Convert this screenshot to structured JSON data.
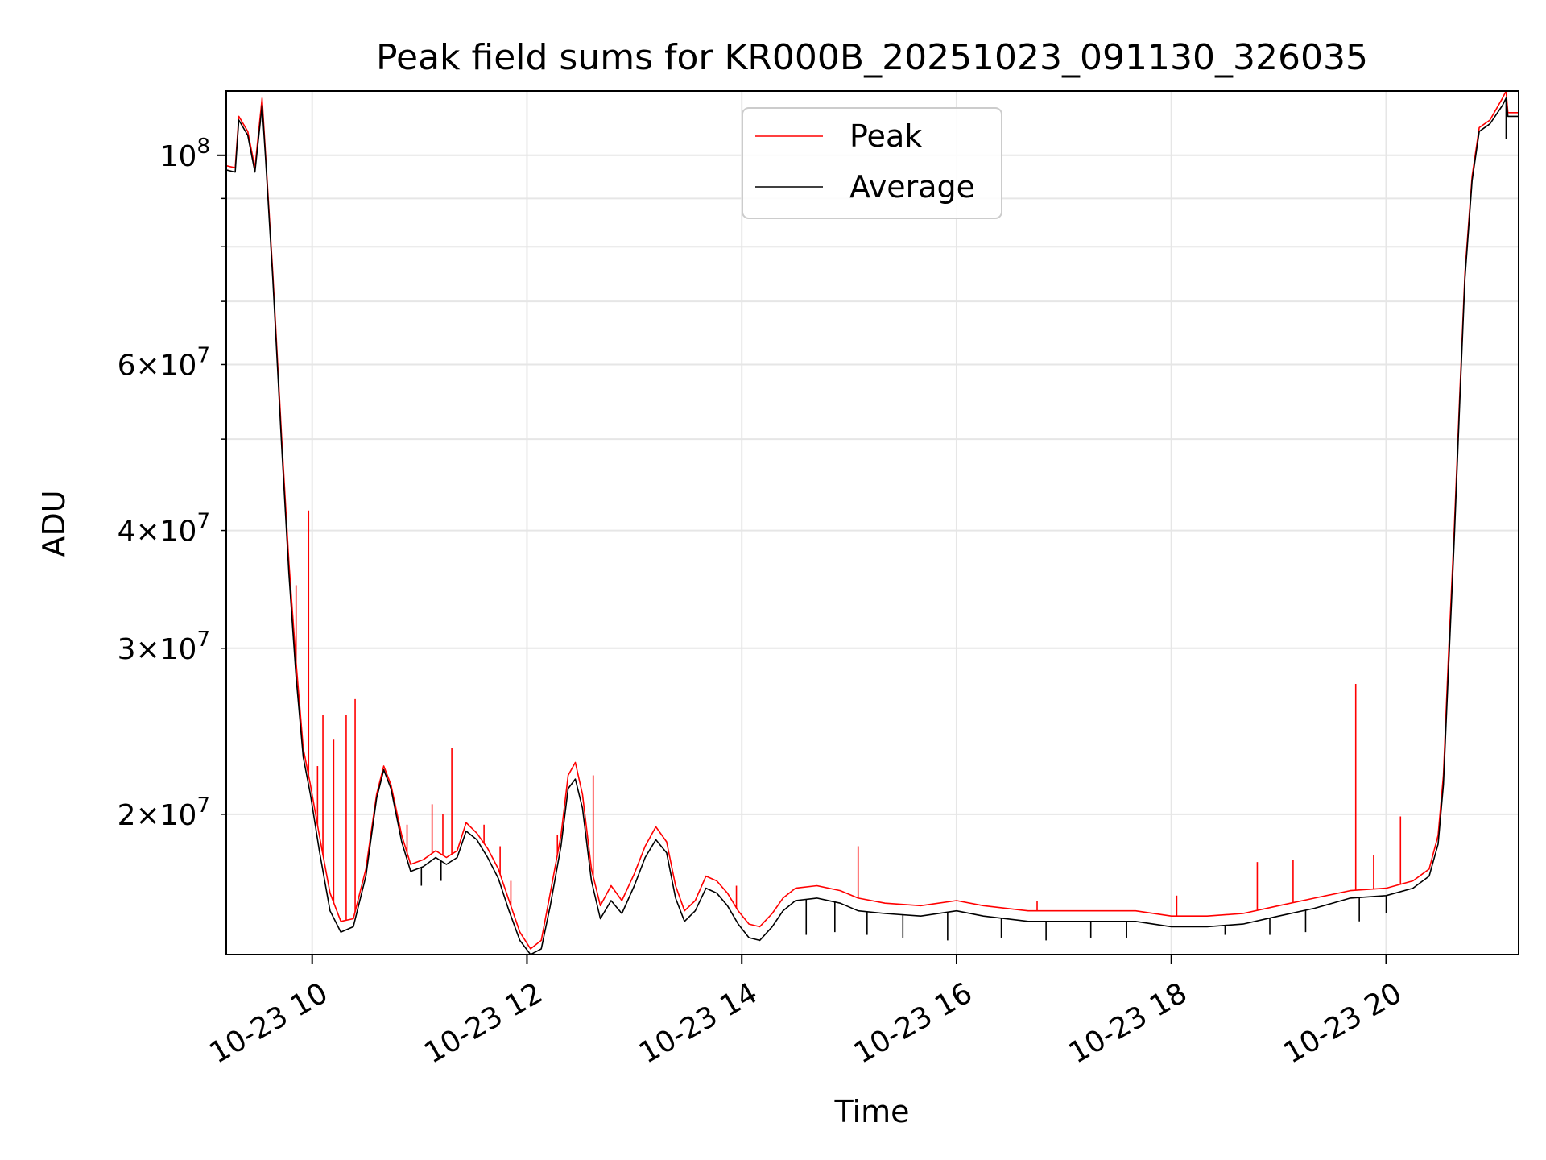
{
  "chart_data": {
    "type": "line",
    "title": "Peak field sums for KR000B_20251023_091130_326035",
    "xlabel": "Time",
    "ylabel": "ADU",
    "yscale": "log",
    "xlim": [
      "2025-10-23 09:12",
      "2025-10-23 21:14"
    ],
    "ylim": [
      14200000,
      117000000
    ],
    "grid": true,
    "legend_position": "top-center",
    "x_ticks": [
      {
        "value": "2025-10-23 10:00",
        "label": "10-23 10"
      },
      {
        "value": "2025-10-23 12:00",
        "label": "10-23 12"
      },
      {
        "value": "2025-10-23 14:00",
        "label": "10-23 14"
      },
      {
        "value": "2025-10-23 16:00",
        "label": "10-23 16"
      },
      {
        "value": "2025-10-23 18:00",
        "label": "10-23 18"
      },
      {
        "value": "2025-10-23 20:00",
        "label": "10-23 20"
      }
    ],
    "y_major_ticks": [
      {
        "value": 100000000,
        "base": "10",
        "exp": "8"
      }
    ],
    "y_minor_ticks": [
      {
        "value": 20000000,
        "mant": "2",
        "base": "10",
        "exp": "7"
      },
      {
        "value": 30000000,
        "mant": "3",
        "base": "10",
        "exp": "7"
      },
      {
        "value": 40000000,
        "mant": "4",
        "base": "10",
        "exp": "7"
      },
      {
        "value": 50000000
      },
      {
        "value": 60000000,
        "mant": "6",
        "base": "10",
        "exp": "7"
      },
      {
        "value": 70000000
      },
      {
        "value": 80000000
      },
      {
        "value": 90000000
      }
    ],
    "times_sign": "×",
    "series": [
      {
        "name": "Peak",
        "color": "#ff0000",
        "points": [
          [
            "2025-10-23 09:12",
            97500000
          ],
          [
            "2025-10-23 09:17",
            97000000
          ],
          [
            "2025-10-23 09:19",
            110000000
          ],
          [
            "2025-10-23 09:24",
            106000000
          ],
          [
            "2025-10-23 09:28",
            97000000
          ],
          [
            "2025-10-23 09:32",
            115000000
          ],
          [
            "2025-10-23 09:34",
            100000000
          ],
          [
            "2025-10-23 09:38",
            75000000
          ],
          [
            "2025-10-23 09:43",
            50000000
          ],
          [
            "2025-10-23 09:47",
            37000000
          ],
          [
            "2025-10-23 09:51",
            29000000
          ],
          [
            "2025-10-23 09:55",
            23500000
          ],
          [
            "2025-10-23 09:59",
            21500000
          ],
          [
            "2025-10-23 10:04",
            19000000
          ],
          [
            "2025-10-23 10:10",
            16500000
          ],
          [
            "2025-10-23 10:16",
            15400000
          ],
          [
            "2025-10-23 10:23",
            15500000
          ],
          [
            "2025-10-23 10:30",
            17500000
          ],
          [
            "2025-10-23 10:36",
            21000000
          ],
          [
            "2025-10-23 10:40",
            22500000
          ],
          [
            "2025-10-23 10:44",
            21500000
          ],
          [
            "2025-10-23 10:50",
            19000000
          ],
          [
            "2025-10-23 10:55",
            17700000
          ],
          [
            "2025-10-23 11:02",
            17900000
          ],
          [
            "2025-10-23 11:09",
            18300000
          ],
          [
            "2025-10-23 11:15",
            18000000
          ],
          [
            "2025-10-23 11:21",
            18300000
          ],
          [
            "2025-10-23 11:26",
            19600000
          ],
          [
            "2025-10-23 11:32",
            19100000
          ],
          [
            "2025-10-23 11:38",
            18400000
          ],
          [
            "2025-10-23 11:44",
            17500000
          ],
          [
            "2025-10-23 11:50",
            16200000
          ],
          [
            "2025-10-23 11:56",
            15000000
          ],
          [
            "2025-10-23 12:02",
            14400000
          ],
          [
            "2025-10-23 12:08",
            14700000
          ],
          [
            "2025-10-23 12:13",
            16500000
          ],
          [
            "2025-10-23 12:19",
            19000000
          ],
          [
            "2025-10-23 12:23",
            22000000
          ],
          [
            "2025-10-23 12:27",
            22700000
          ],
          [
            "2025-10-23 12:31",
            21000000
          ],
          [
            "2025-10-23 12:36",
            17500000
          ],
          [
            "2025-10-23 12:41",
            16000000
          ],
          [
            "2025-10-23 12:47",
            16800000
          ],
          [
            "2025-10-23 12:53",
            16200000
          ],
          [
            "2025-10-23 13:00",
            17300000
          ],
          [
            "2025-10-23 13:06",
            18500000
          ],
          [
            "2025-10-23 13:12",
            19400000
          ],
          [
            "2025-10-23 13:18",
            18700000
          ],
          [
            "2025-10-23 13:23",
            16800000
          ],
          [
            "2025-10-23 13:28",
            15800000
          ],
          [
            "2025-10-23 13:34",
            16200000
          ],
          [
            "2025-10-23 13:40",
            17200000
          ],
          [
            "2025-10-23 13:46",
            17000000
          ],
          [
            "2025-10-23 13:52",
            16500000
          ],
          [
            "2025-10-23 13:58",
            15800000
          ],
          [
            "2025-10-23 14:04",
            15300000
          ],
          [
            "2025-10-23 14:10",
            15200000
          ],
          [
            "2025-10-23 14:17",
            15700000
          ],
          [
            "2025-10-23 14:23",
            16300000
          ],
          [
            "2025-10-23 14:30",
            16700000
          ],
          [
            "2025-10-23 14:42",
            16800000
          ],
          [
            "2025-10-23 14:55",
            16600000
          ],
          [
            "2025-10-23 15:05",
            16300000
          ],
          [
            "2025-10-23 15:20",
            16100000
          ],
          [
            "2025-10-23 15:40",
            16000000
          ],
          [
            "2025-10-23 16:00",
            16200000
          ],
          [
            "2025-10-23 16:15",
            16000000
          ],
          [
            "2025-10-23 16:40",
            15800000
          ],
          [
            "2025-10-23 17:00",
            15800000
          ],
          [
            "2025-10-23 17:20",
            15800000
          ],
          [
            "2025-10-23 17:40",
            15800000
          ],
          [
            "2025-10-23 18:00",
            15600000
          ],
          [
            "2025-10-23 18:20",
            15600000
          ],
          [
            "2025-10-23 18:40",
            15700000
          ],
          [
            "2025-10-23 19:00",
            16000000
          ],
          [
            "2025-10-23 19:20",
            16300000
          ],
          [
            "2025-10-23 19:40",
            16600000
          ],
          [
            "2025-10-23 20:00",
            16700000
          ],
          [
            "2025-10-23 20:15",
            17000000
          ],
          [
            "2025-10-23 20:24",
            17500000
          ],
          [
            "2025-10-23 20:29",
            19000000
          ],
          [
            "2025-10-23 20:32",
            22000000
          ],
          [
            "2025-10-23 20:35",
            30000000
          ],
          [
            "2025-10-23 20:38",
            40000000
          ],
          [
            "2025-10-23 20:41",
            55000000
          ],
          [
            "2025-10-23 20:44",
            75000000
          ],
          [
            "2025-10-23 20:48",
            95000000
          ],
          [
            "2025-10-23 20:52",
            107000000
          ],
          [
            "2025-10-23 20:58",
            109000000
          ],
          [
            "2025-10-23 21:05",
            115000000
          ],
          [
            "2025-10-23 21:07",
            117000000
          ],
          [
            "2025-10-23 21:08",
            111000000
          ],
          [
            "2025-10-23 21:14",
            111000000
          ]
        ],
        "spikes": [
          [
            "2025-10-23 09:51",
            35000000
          ],
          [
            "2025-10-23 09:58",
            42000000
          ],
          [
            "2025-10-23 10:03",
            22500000
          ],
          [
            "2025-10-23 10:06",
            25500000
          ],
          [
            "2025-10-23 10:12",
            24000000
          ],
          [
            "2025-10-23 10:19",
            25500000
          ],
          [
            "2025-10-23 10:24",
            26500000
          ],
          [
            "2025-10-23 10:53",
            19500000
          ],
          [
            "2025-10-23 11:07",
            20500000
          ],
          [
            "2025-10-23 11:13",
            20000000
          ],
          [
            "2025-10-23 11:18",
            23500000
          ],
          [
            "2025-10-23 11:36",
            19500000
          ],
          [
            "2025-10-23 11:45",
            18500000
          ],
          [
            "2025-10-23 11:51",
            17000000
          ],
          [
            "2025-10-23 12:17",
            19000000
          ],
          [
            "2025-10-23 12:37",
            22000000
          ],
          [
            "2025-10-23 13:57",
            16800000
          ],
          [
            "2025-10-23 15:05",
            18500000
          ],
          [
            "2025-10-23 16:45",
            16200000
          ],
          [
            "2025-10-23 18:03",
            16400000
          ],
          [
            "2025-10-23 18:48",
            17800000
          ],
          [
            "2025-10-23 19:08",
            17900000
          ],
          [
            "2025-10-23 19:43",
            27500000
          ],
          [
            "2025-10-23 19:53",
            18100000
          ],
          [
            "2025-10-23 20:08",
            19900000
          ],
          [
            "2025-10-23 20:31",
            20800000
          ]
        ]
      },
      {
        "name": "Average",
        "color": "#000000",
        "points": [
          [
            "2025-10-23 09:12",
            96500000
          ],
          [
            "2025-10-23 09:17",
            96000000
          ],
          [
            "2025-10-23 09:19",
            109000000
          ],
          [
            "2025-10-23 09:24",
            105000000
          ],
          [
            "2025-10-23 09:28",
            96000000
          ],
          [
            "2025-10-23 09:32",
            113000000
          ],
          [
            "2025-10-23 09:34",
            99000000
          ],
          [
            "2025-10-23 09:38",
            74000000
          ],
          [
            "2025-10-23 09:43",
            49000000
          ],
          [
            "2025-10-23 09:47",
            36000000
          ],
          [
            "2025-10-23 09:51",
            28000000
          ],
          [
            "2025-10-23 09:55",
            23000000
          ],
          [
            "2025-10-23 09:59",
            21000000
          ],
          [
            "2025-10-23 10:04",
            18300000
          ],
          [
            "2025-10-23 10:10",
            15800000
          ],
          [
            "2025-10-23 10:16",
            15000000
          ],
          [
            "2025-10-23 10:23",
            15200000
          ],
          [
            "2025-10-23 10:30",
            17200000
          ],
          [
            "2025-10-23 10:36",
            20800000
          ],
          [
            "2025-10-23 10:40",
            22300000
          ],
          [
            "2025-10-23 10:44",
            21300000
          ],
          [
            "2025-10-23 10:50",
            18700000
          ],
          [
            "2025-10-23 10:55",
            17400000
          ],
          [
            "2025-10-23 11:02",
            17600000
          ],
          [
            "2025-10-23 11:09",
            18000000
          ],
          [
            "2025-10-23 11:15",
            17700000
          ],
          [
            "2025-10-23 11:21",
            18000000
          ],
          [
            "2025-10-23 11:26",
            19200000
          ],
          [
            "2025-10-23 11:32",
            18800000
          ],
          [
            "2025-10-23 11:38",
            18000000
          ],
          [
            "2025-10-23 11:44",
            17100000
          ],
          [
            "2025-10-23 11:50",
            15800000
          ],
          [
            "2025-10-23 11:56",
            14700000
          ],
          [
            "2025-10-23 12:02",
            14200000
          ],
          [
            "2025-10-23 12:08",
            14400000
          ],
          [
            "2025-10-23 12:13",
            16000000
          ],
          [
            "2025-10-23 12:19",
            18500000
          ],
          [
            "2025-10-23 12:23",
            21300000
          ],
          [
            "2025-10-23 12:27",
            21800000
          ],
          [
            "2025-10-23 12:31",
            20300000
          ],
          [
            "2025-10-23 12:36",
            17000000
          ],
          [
            "2025-10-23 12:41",
            15500000
          ],
          [
            "2025-10-23 12:47",
            16200000
          ],
          [
            "2025-10-23 12:53",
            15700000
          ],
          [
            "2025-10-23 13:00",
            16800000
          ],
          [
            "2025-10-23 13:06",
            18000000
          ],
          [
            "2025-10-23 13:12",
            18800000
          ],
          [
            "2025-10-23 13:18",
            18200000
          ],
          [
            "2025-10-23 13:23",
            16300000
          ],
          [
            "2025-10-23 13:28",
            15400000
          ],
          [
            "2025-10-23 13:34",
            15800000
          ],
          [
            "2025-10-23 13:40",
            16700000
          ],
          [
            "2025-10-23 13:46",
            16500000
          ],
          [
            "2025-10-23 13:52",
            16000000
          ],
          [
            "2025-10-23 13:58",
            15300000
          ],
          [
            "2025-10-23 14:04",
            14800000
          ],
          [
            "2025-10-23 14:10",
            14700000
          ],
          [
            "2025-10-23 14:17",
            15200000
          ],
          [
            "2025-10-23 14:23",
            15800000
          ],
          [
            "2025-10-23 14:30",
            16200000
          ],
          [
            "2025-10-23 14:42",
            16300000
          ],
          [
            "2025-10-23 14:55",
            16100000
          ],
          [
            "2025-10-23 15:05",
            15800000
          ],
          [
            "2025-10-23 15:20",
            15700000
          ],
          [
            "2025-10-23 15:40",
            15600000
          ],
          [
            "2025-10-23 16:00",
            15800000
          ],
          [
            "2025-10-23 16:15",
            15600000
          ],
          [
            "2025-10-23 16:40",
            15400000
          ],
          [
            "2025-10-23 17:00",
            15400000
          ],
          [
            "2025-10-23 17:20",
            15400000
          ],
          [
            "2025-10-23 17:40",
            15400000
          ],
          [
            "2025-10-23 18:00",
            15200000
          ],
          [
            "2025-10-23 18:20",
            15200000
          ],
          [
            "2025-10-23 18:40",
            15300000
          ],
          [
            "2025-10-23 19:00",
            15600000
          ],
          [
            "2025-10-23 19:20",
            15900000
          ],
          [
            "2025-10-23 19:40",
            16300000
          ],
          [
            "2025-10-23 20:00",
            16400000
          ],
          [
            "2025-10-23 20:15",
            16700000
          ],
          [
            "2025-10-23 20:24",
            17200000
          ],
          [
            "2025-10-23 20:29",
            18600000
          ],
          [
            "2025-10-23 20:32",
            21500000
          ],
          [
            "2025-10-23 20:35",
            29000000
          ],
          [
            "2025-10-23 20:38",
            39000000
          ],
          [
            "2025-10-23 20:41",
            54000000
          ],
          [
            "2025-10-23 20:44",
            74000000
          ],
          [
            "2025-10-23 20:48",
            94000000
          ],
          [
            "2025-10-23 20:52",
            106000000
          ],
          [
            "2025-10-23 20:58",
            108000000
          ],
          [
            "2025-10-23 21:05",
            113000000
          ],
          [
            "2025-10-23 21:07",
            115000000
          ],
          [
            "2025-10-23 21:08",
            110000000
          ],
          [
            "2025-10-23 21:14",
            110000000
          ]
        ],
        "dips": [
          [
            "2025-10-23 11:01",
            16800000
          ],
          [
            "2025-10-23 11:12",
            17000000
          ],
          [
            "2025-10-23 14:36",
            14900000
          ],
          [
            "2025-10-23 14:52",
            15000000
          ],
          [
            "2025-10-23 15:10",
            14900000
          ],
          [
            "2025-10-23 15:30",
            14800000
          ],
          [
            "2025-10-23 15:55",
            14700000
          ],
          [
            "2025-10-23 16:25",
            14800000
          ],
          [
            "2025-10-23 16:50",
            14700000
          ],
          [
            "2025-10-23 17:15",
            14800000
          ],
          [
            "2025-10-23 17:35",
            14800000
          ],
          [
            "2025-10-23 18:30",
            14900000
          ],
          [
            "2025-10-23 18:55",
            14900000
          ],
          [
            "2025-10-23 19:15",
            15000000
          ],
          [
            "2025-10-23 19:45",
            15400000
          ],
          [
            "2025-10-23 20:00",
            15700000
          ],
          [
            "2025-10-23 21:07",
            104000000
          ]
        ]
      }
    ]
  }
}
